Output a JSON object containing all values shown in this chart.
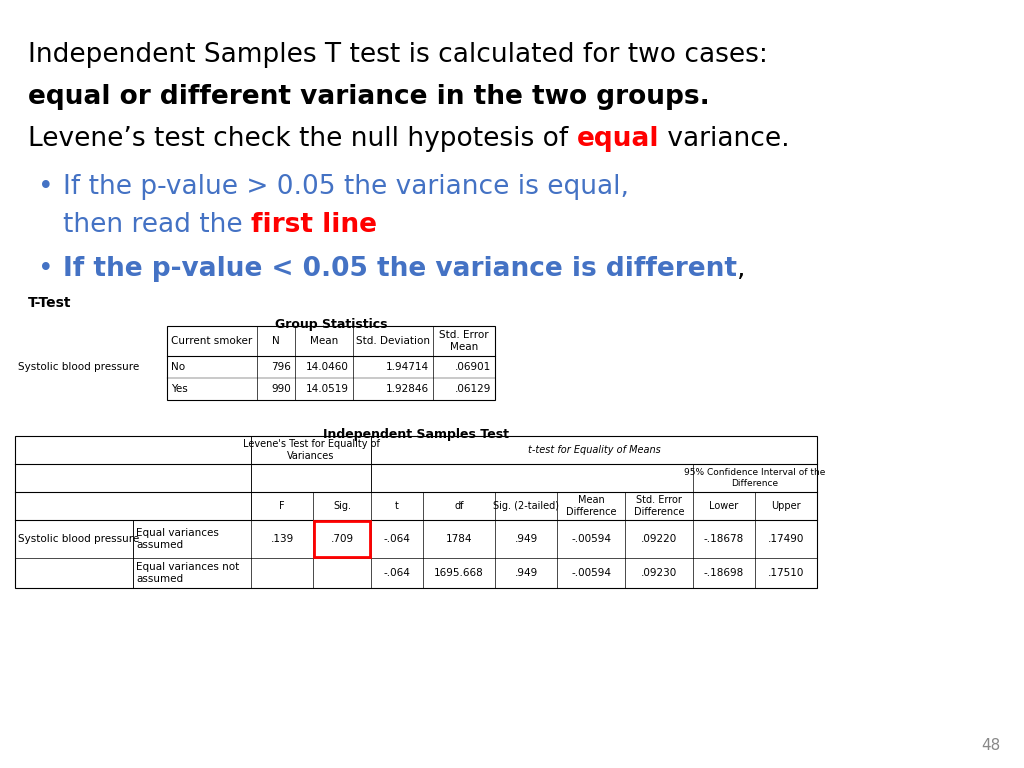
{
  "title_line1": "Independent Samples T test is calculated for two cases:",
  "title_line2": "equal or different variance in the two groups.",
  "title_line3_pre": "Levene’s test check the null hypotesis of ",
  "title_line3_red": "equal",
  "title_line3_post": " variance.",
  "bullet1_blue": "If the p-value > 0.05 the variance is equal,",
  "bullet1_blue2": "then read the ",
  "bullet1_red": "first line",
  "bullet2_bold": "If the p-value < 0.05 the variance is different",
  "bullet2_end": ",",
  "ttest_label": "T-Test",
  "group_stats_title": "Group Statistics",
  "group_stats_headers": [
    "",
    "Current smoker",
    "N",
    "Mean",
    "Std. Deviation",
    "Std. Error\nMean"
  ],
  "group_stats_rows": [
    [
      "Systolic blood pressure",
      "No",
      "796",
      "14.0460",
      "1.94714",
      ".06901"
    ],
    [
      "",
      "Yes",
      "990",
      "14.0519",
      "1.92846",
      ".06129"
    ]
  ],
  "ind_samples_title": "Independent Samples Test",
  "ist_rows": [
    [
      "Systolic blood pressure",
      "Equal variances\nassumed",
      ".139",
      ".709",
      "-.064",
      "1784",
      ".949",
      "-.00594",
      ".09220",
      "-.18678",
      ".17490"
    ],
    [
      "",
      "Equal variances not\nassumed",
      "",
      "",
      "-.064",
      "1695.668",
      ".949",
      "-.00594",
      ".09230",
      "-.18698",
      ".17510"
    ]
  ],
  "highlighted_cell": ".709",
  "page_number": "48",
  "bg_color": "#ffffff",
  "text_black": "#000000",
  "text_blue": "#4472C4",
  "text_red": "#FF0000"
}
